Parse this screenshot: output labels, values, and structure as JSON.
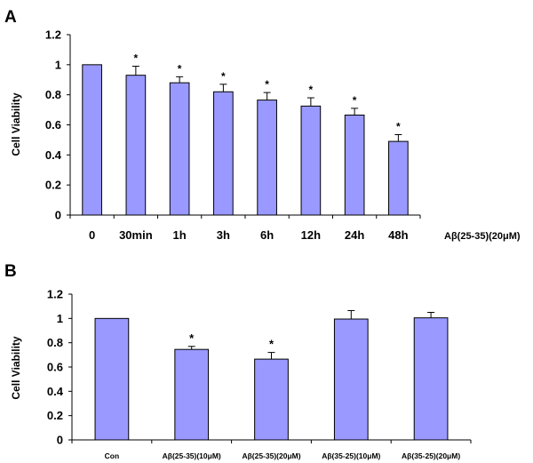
{
  "chart_data": [
    {
      "type": "bar",
      "panel": "A",
      "ylabel": "Cell Viability",
      "ylim": [
        0,
        1.2
      ],
      "yticks": [
        "0",
        "0.2",
        "0.4",
        "0.6",
        "0.8",
        "1",
        "1.2"
      ],
      "categories": [
        "0",
        "30min",
        "1h",
        "3h",
        "6h",
        "12h",
        "24h",
        "48h"
      ],
      "values": [
        1.0,
        0.93,
        0.88,
        0.82,
        0.765,
        0.725,
        0.665,
        0.49
      ],
      "errors": [
        0,
        0.06,
        0.04,
        0.05,
        0.05,
        0.055,
        0.045,
        0.045
      ],
      "significance": [
        "",
        "*",
        "*",
        "*",
        "*",
        "*",
        "*",
        "*"
      ],
      "annotation": "Aβ(25-35)(20μM)",
      "bar_color": "#9999ff",
      "grid": false
    },
    {
      "type": "bar",
      "panel": "B",
      "ylabel": "Cell Viability",
      "ylim": [
        0,
        1.2
      ],
      "yticks": [
        "0",
        "0.2",
        "0.4",
        "0.6",
        "0.8",
        "1",
        "1.2"
      ],
      "categories": [
        "Con",
        "Aβ(25-35)(10μM)",
        "Aβ(25-35)(20μM)",
        "Aβ(35-25)(10μM)",
        "Aβ(35-25)(20μM)"
      ],
      "values": [
        1.0,
        0.745,
        0.665,
        0.995,
        1.005
      ],
      "errors": [
        0,
        0.025,
        0.055,
        0.07,
        0.045
      ],
      "significance": [
        "",
        "*",
        "*",
        "",
        ""
      ],
      "bar_color": "#9999ff",
      "grid": false
    }
  ]
}
